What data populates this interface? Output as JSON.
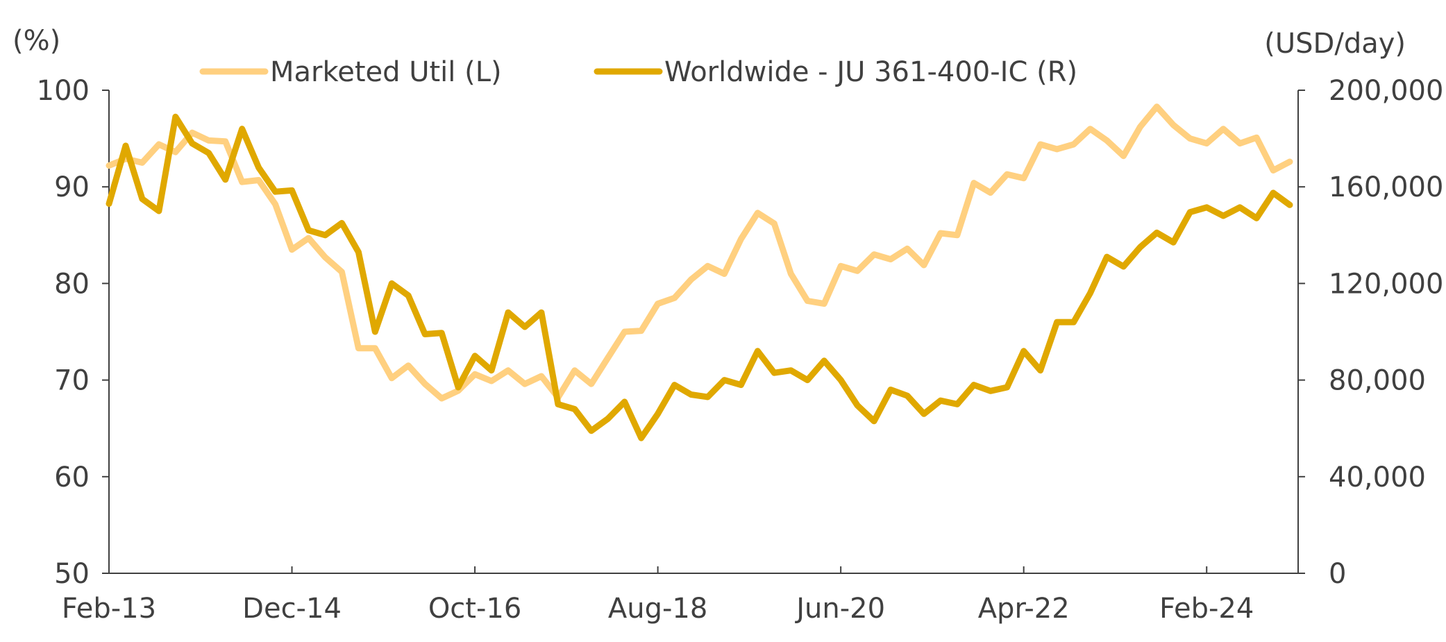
{
  "chart_data": {
    "type": "line",
    "title": "",
    "left_axis": {
      "unit_label": "(%)",
      "ylim": [
        50,
        100
      ],
      "ticks": [
        50,
        60,
        70,
        80,
        90,
        100
      ]
    },
    "right_axis": {
      "unit_label": "(USD/day)",
      "ylim": [
        0,
        200000
      ],
      "ticks": [
        0,
        40000,
        80000,
        120000,
        160000,
        200000
      ],
      "tick_labels": [
        "0",
        "40,000",
        "80,000",
        "120,000",
        "160,000",
        "200,000"
      ]
    },
    "x_axis": {
      "range": [
        "Feb-13",
        "Jan-25"
      ],
      "ticks": [
        "Feb-13",
        "Dec-14",
        "Oct-16",
        "Aug-18",
        "Jun-20",
        "Apr-22",
        "Feb-24"
      ]
    },
    "legend": {
      "placement": "top-center"
    },
    "grid": false,
    "series": [
      {
        "name": "Marketed Util (L)",
        "axis": "left",
        "color": "#FFD080",
        "x": [
          "2013-02",
          "2013-04",
          "2013-06",
          "2013-08",
          "2013-10",
          "2013-12",
          "2014-02",
          "2014-04",
          "2014-06",
          "2014-08",
          "2014-10",
          "2014-12",
          "2015-02",
          "2015-04",
          "2015-06",
          "2015-08",
          "2015-10",
          "2015-12",
          "2016-02",
          "2016-04",
          "2016-06",
          "2016-08",
          "2016-10",
          "2016-12",
          "2017-02",
          "2017-04",
          "2017-06",
          "2017-08",
          "2017-10",
          "2017-12",
          "2018-02",
          "2018-04",
          "2018-06",
          "2018-08",
          "2018-10",
          "2018-12",
          "2019-02",
          "2019-04",
          "2019-06",
          "2019-08",
          "2019-10",
          "2019-12",
          "2020-02",
          "2020-04",
          "2020-06",
          "2020-08",
          "2020-10",
          "2020-12",
          "2021-02",
          "2021-04",
          "2021-06",
          "2021-08",
          "2021-10",
          "2021-12",
          "2022-02",
          "2022-04",
          "2022-06",
          "2022-08",
          "2022-10",
          "2022-12",
          "2023-02",
          "2023-04",
          "2023-06",
          "2023-08",
          "2023-10",
          "2023-12",
          "2024-02",
          "2024-04",
          "2024-06",
          "2024-08",
          "2024-10",
          "2024-12"
        ],
        "values": [
          92.2,
          92.9,
          92.5,
          94.4,
          93.6,
          95.6,
          94.8,
          94.7,
          90.5,
          90.7,
          88.2,
          83.5,
          84.7,
          82.7,
          81.2,
          73.3,
          73.3,
          70.2,
          71.5,
          69.6,
          68.1,
          68.9,
          70.6,
          69.9,
          71.0,
          69.6,
          70.4,
          68.2,
          71.0,
          69.6,
          72.3,
          75.0,
          75.1,
          77.9,
          78.5,
          80.4,
          81.8,
          81.0,
          84.6,
          87.3,
          86.2,
          81.0,
          78.2,
          77.9,
          81.8,
          81.3,
          83.0,
          82.5,
          83.6,
          81.9,
          85.2,
          85.0,
          90.4,
          89.4,
          91.3,
          90.9,
          94.4,
          93.9,
          94.4,
          96.0,
          94.8,
          93.2,
          96.2,
          98.3,
          96.4,
          95.0,
          94.5,
          96.0,
          94.5,
          95.1,
          91.7,
          92.6
        ]
      },
      {
        "name": "Worldwide - JU 361-400-IC (R)",
        "axis": "right",
        "color": "#E0A800",
        "x": [
          "2013-02",
          "2013-04",
          "2013-06",
          "2013-08",
          "2013-10",
          "2013-12",
          "2014-02",
          "2014-04",
          "2014-06",
          "2014-08",
          "2014-10",
          "2014-12",
          "2015-02",
          "2015-04",
          "2015-06",
          "2015-08",
          "2015-10",
          "2015-12",
          "2016-02",
          "2016-04",
          "2016-06",
          "2016-08",
          "2016-10",
          "2016-12",
          "2017-02",
          "2017-04",
          "2017-06",
          "2017-08",
          "2017-10",
          "2017-12",
          "2018-02",
          "2018-04",
          "2018-06",
          "2018-08",
          "2018-10",
          "2018-12",
          "2019-02",
          "2019-04",
          "2019-06",
          "2019-08",
          "2019-10",
          "2019-12",
          "2020-02",
          "2020-04",
          "2020-06",
          "2020-08",
          "2020-10",
          "2020-12",
          "2021-02",
          "2021-04",
          "2021-06",
          "2021-08",
          "2021-10",
          "2021-12",
          "2022-02",
          "2022-04",
          "2022-06",
          "2022-08",
          "2022-10",
          "2022-12",
          "2023-02",
          "2023-04",
          "2023-06",
          "2023-08",
          "2023-10",
          "2023-12",
          "2024-02",
          "2024-04",
          "2024-06",
          "2024-08",
          "2024-10",
          "2024-12"
        ],
        "values": [
          153000,
          177000,
          155000,
          150000,
          189000,
          178000,
          174000,
          163000,
          184000,
          168000,
          158000,
          158500,
          142000,
          140000,
          145000,
          133000,
          100000,
          120000,
          115000,
          99000,
          99500,
          77000,
          90000,
          84000,
          108000,
          102000,
          108000,
          70000,
          68000,
          59000,
          64000,
          71000,
          56000,
          66000,
          78000,
          74000,
          73000,
          80000,
          78000,
          92000,
          83000,
          84000,
          80000,
          88000,
          80000,
          69500,
          63000,
          76000,
          73500,
          66000,
          71500,
          70000,
          78000,
          75500,
          77000,
          92000,
          84000,
          104000,
          104000,
          116000,
          131000,
          127000,
          135000,
          141000,
          137000,
          149500,
          151500,
          148000,
          151500,
          147000,
          157500,
          152500
        ]
      }
    ]
  }
}
